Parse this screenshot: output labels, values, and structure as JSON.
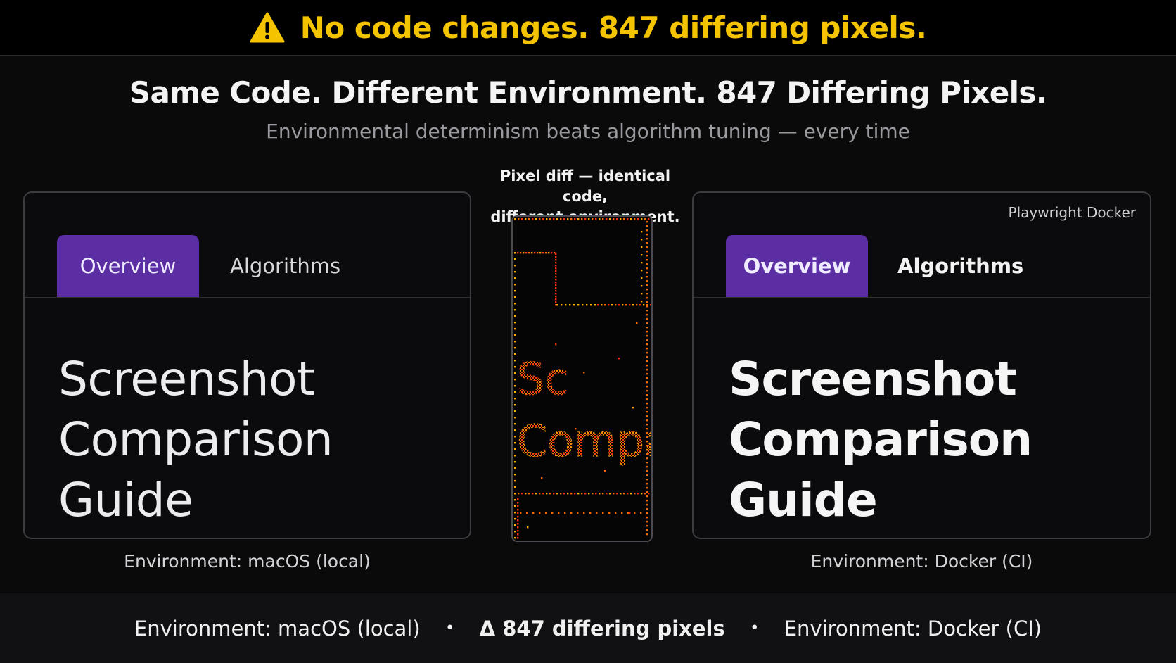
{
  "banner": {
    "icon": "warning-icon",
    "text": "No code changes. 847 differing pixels.",
    "color": "#f5c400"
  },
  "headline": "Same Code. Different Environment. 847 Differing Pixels.",
  "subheadline": "Environmental determinism beats algorithm tuning — every time",
  "left_panel": {
    "tabs": {
      "active": "Overview",
      "inactive": "Algorithms"
    },
    "title_line1": "Screenshot",
    "title_line2": "Comparison Guide",
    "environment": "Environment: macOS (local)"
  },
  "diff": {
    "caption_line1": "Pixel diff — identical code,",
    "caption_line2": "different environment.",
    "text_line1": "Sc",
    "text_line2": "Compa",
    "colors": [
      "#ff2a12",
      "#ff6a00",
      "#ffb000"
    ]
  },
  "right_panel": {
    "tool_label": "Playwright Docker",
    "tabs": {
      "active": "Overview",
      "inactive": "Algorithms"
    },
    "title_line1": "Screenshot",
    "title_line2": "Comparison Guide",
    "environment": "Environment: Docker (CI)"
  },
  "footer": {
    "left": "Environment: macOS (local)",
    "separator": "•",
    "middle": "Δ 847 differing pixels",
    "right": "Environment: Docker (CI)"
  },
  "colors": {
    "accent_purple": "#5b2ea3",
    "background": "#0a0a0b"
  }
}
